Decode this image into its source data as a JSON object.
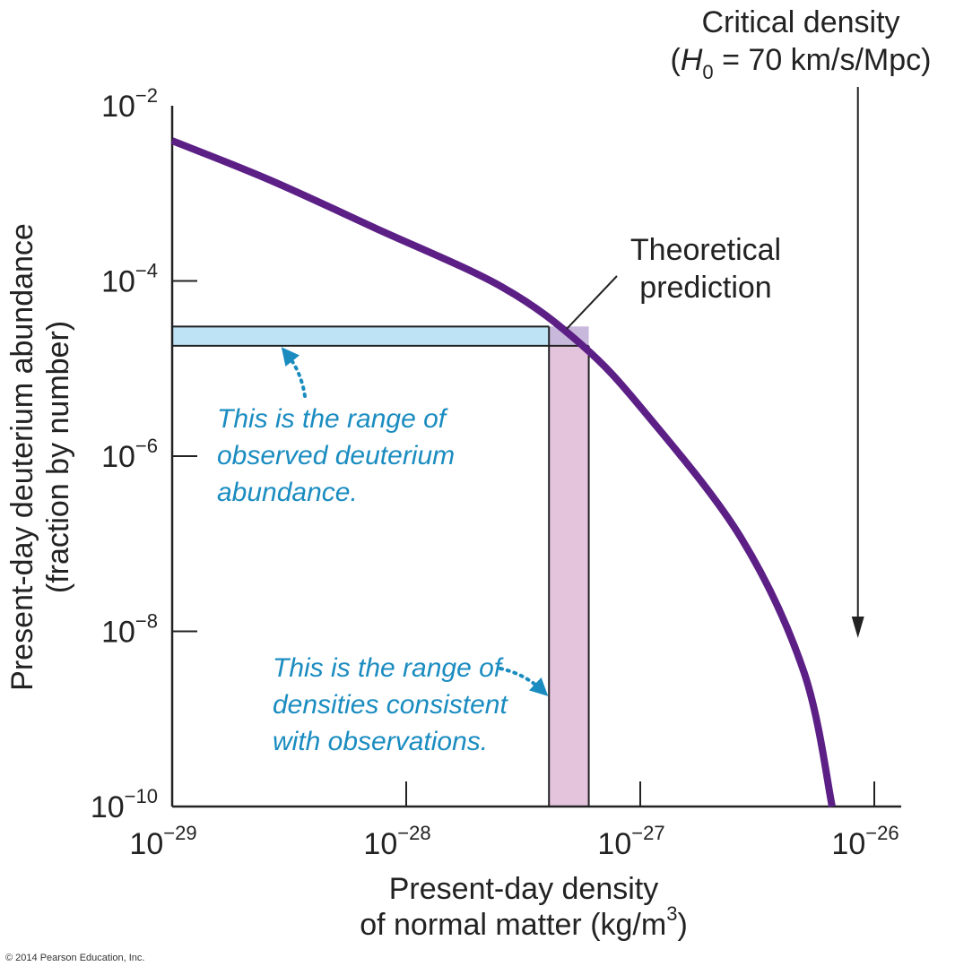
{
  "chart_data": {
    "type": "line",
    "title": "",
    "xlabel": [
      "Present-day density",
      "of normal matter (kg/m",
      "3",
      ")"
    ],
    "ylabel": [
      "Present-day deuterium abundance",
      "(fraction by number)"
    ],
    "x_scale": "log",
    "y_scale": "log",
    "xlim_log10": [
      -29,
      -26
    ],
    "ylim_log10": [
      -10,
      -2
    ],
    "x_ticks": [
      {
        "base": "10",
        "exp": "−29",
        "v": -29
      },
      {
        "base": "10",
        "exp": "−28",
        "v": -28
      },
      {
        "base": "10",
        "exp": "−27",
        "v": -27
      },
      {
        "base": "10",
        "exp": "−26",
        "v": -26
      }
    ],
    "y_ticks": [
      {
        "base": "10",
        "exp": "−2",
        "v": -2
      },
      {
        "base": "10",
        "exp": "−4",
        "v": -4
      },
      {
        "base": "10",
        "exp": "−6",
        "v": -6
      },
      {
        "base": "10",
        "exp": "−8",
        "v": -8
      },
      {
        "base": "10",
        "exp": "−10",
        "v": -10
      }
    ],
    "series": [
      {
        "name": "Theoretical prediction",
        "color": "#5c1f86",
        "x_log10": [
          -29,
          -28.59,
          -28.13,
          -27.59,
          -27.25,
          -26.98,
          -26.57,
          -26.3,
          -26.18
        ],
        "y_log10": [
          -2.4,
          -2.84,
          -3.4,
          -4.07,
          -4.73,
          -5.5,
          -6.93,
          -8.47,
          -10.0
        ]
      }
    ],
    "observed_abundance_band_log10": [
      -4.74,
      -4.52
    ],
    "consistent_density_band_log10": [
      -27.39,
      -27.22
    ],
    "band_colors": {
      "abundance": "#bde3f4",
      "density": "#e4c3dd",
      "overlap": "#c8b8dc"
    },
    "critical_density": {
      "x_log10": -26.07,
      "label1": "Critical density",
      "label2_pre": "(",
      "label2_H": "H",
      "label2_sub": "0",
      "label2_post": " = 70 km/s/Mpc)"
    },
    "annotations": {
      "theory": [
        "Theoretical",
        "prediction"
      ],
      "abundance_note": [
        "This is the range of",
        "observed deuterium",
        "abundance."
      ],
      "density_note": [
        "This is the range of",
        "densities consistent",
        "with observations."
      ],
      "note_color": "#1a8cc0"
    }
  },
  "copyright": "© 2014 Pearson Education, Inc."
}
